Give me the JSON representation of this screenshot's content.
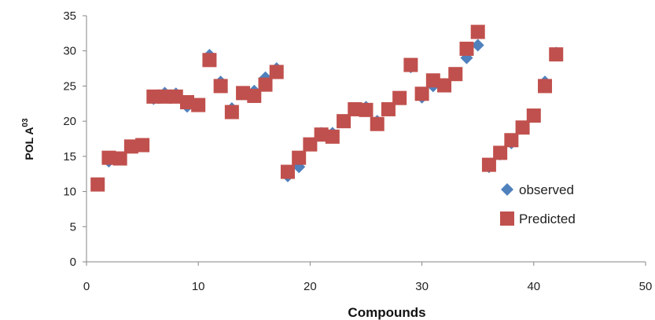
{
  "chart_data": {
    "type": "scatter",
    "title": "",
    "xlabel": "Compounds",
    "ylabel_base": "POL A",
    "ylabel_sup": "03",
    "xlim": [
      0,
      50
    ],
    "ylim": [
      0,
      35
    ],
    "x_ticks": [
      0,
      10,
      20,
      30,
      40,
      50
    ],
    "y_ticks": [
      0,
      5,
      10,
      15,
      20,
      25,
      30,
      35
    ],
    "grid": false,
    "legend_position": "right",
    "series": [
      {
        "name": "observed",
        "marker": "diamond",
        "color": "#4F81BD",
        "x": [
          1,
          2,
          3,
          4,
          5,
          6,
          7,
          8,
          9,
          10,
          11,
          12,
          13,
          14,
          15,
          16,
          17,
          18,
          19,
          20,
          21,
          22,
          23,
          24,
          25,
          26,
          27,
          28,
          29,
          30,
          31,
          32,
          33,
          34,
          35,
          36,
          37,
          38,
          39,
          40,
          41,
          42
        ],
        "y": [
          11.0,
          14.3,
          14.6,
          16.3,
          16.6,
          23.2,
          24.0,
          23.9,
          22.1,
          22.2,
          29.4,
          25.6,
          21.8,
          24.0,
          24.3,
          26.2,
          27.5,
          12.2,
          13.5,
          16.8,
          18.3,
          18.3,
          19.9,
          21.8,
          22.0,
          20.0,
          21.8,
          23.2,
          27.7,
          23.4,
          25.0,
          25.2,
          26.6,
          29.0,
          30.8,
          13.5,
          15.3,
          16.9,
          19.2,
          20.7,
          25.6,
          29.7
        ]
      },
      {
        "name": "Predicted",
        "marker": "square",
        "color": "#C0504D",
        "x": [
          1,
          2,
          3,
          4,
          5,
          6,
          7,
          8,
          9,
          10,
          11,
          12,
          13,
          14,
          15,
          16,
          17,
          18,
          19,
          20,
          21,
          22,
          23,
          24,
          25,
          26,
          27,
          28,
          29,
          30,
          31,
          32,
          33,
          34,
          35,
          36,
          37,
          38,
          39,
          40,
          41,
          42
        ],
        "y": [
          11.0,
          14.8,
          14.7,
          16.4,
          16.6,
          23.5,
          23.5,
          23.5,
          22.7,
          22.3,
          28.7,
          25.0,
          21.3,
          24.0,
          23.6,
          25.2,
          27.0,
          12.8,
          14.8,
          16.7,
          18.1,
          17.8,
          20.0,
          21.7,
          21.6,
          19.6,
          21.7,
          23.3,
          28.0,
          23.9,
          25.8,
          25.1,
          26.7,
          30.3,
          32.7,
          13.8,
          15.5,
          17.3,
          19.1,
          20.8,
          25.0,
          29.5
        ]
      }
    ]
  }
}
